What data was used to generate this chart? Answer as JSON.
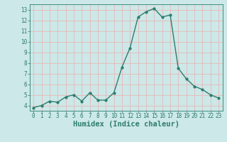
{
  "x": [
    0,
    1,
    2,
    3,
    4,
    5,
    6,
    7,
    8,
    9,
    10,
    11,
    12,
    13,
    14,
    15,
    16,
    17,
    18,
    19,
    20,
    21,
    22,
    23
  ],
  "y": [
    3.8,
    4.0,
    4.4,
    4.3,
    4.8,
    5.0,
    4.4,
    5.2,
    4.5,
    4.5,
    5.2,
    7.6,
    9.4,
    12.3,
    12.8,
    13.1,
    12.3,
    12.5,
    7.5,
    6.5,
    5.8,
    5.5,
    5.0,
    4.7
  ],
  "line_color": "#2e7d6e",
  "marker": "o",
  "marker_size": 2.0,
  "line_width": 1.0,
  "bg_color": "#cce8e8",
  "grid_color": "#e8b8b8",
  "xlabel": "Humidex (Indice chaleur)",
  "xlim": [
    -0.5,
    23.5
  ],
  "ylim": [
    3.5,
    13.5
  ],
  "yticks": [
    4,
    5,
    6,
    7,
    8,
    9,
    10,
    11,
    12,
    13
  ],
  "xticks": [
    0,
    1,
    2,
    3,
    4,
    5,
    6,
    7,
    8,
    9,
    10,
    11,
    12,
    13,
    14,
    15,
    16,
    17,
    18,
    19,
    20,
    21,
    22,
    23
  ],
  "axis_color": "#2e7d6e"
}
